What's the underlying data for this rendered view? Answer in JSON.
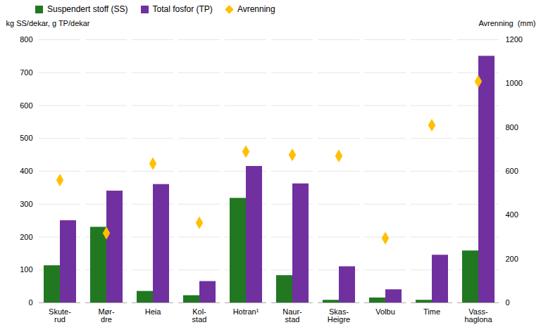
{
  "chart_data": {
    "type": "bar",
    "categories": [
      "Skute-\nrud",
      "Mør-\ndre",
      "Heia",
      "Kol-\nstad",
      "Hotran¹",
      "Naur-\nstad",
      "Skas-\nHeigre",
      "Volbu",
      "Time",
      "Vass-\nhaglona"
    ],
    "series": [
      {
        "name": "Suspendert stoff (SS)",
        "color": "#217821",
        "values": [
          113,
          230,
          35,
          22,
          318,
          83,
          8,
          15,
          8,
          158
        ]
      },
      {
        "name": "Total fosfor (TP)",
        "color": "#7030a0",
        "values": [
          250,
          340,
          360,
          65,
          415,
          362,
          110,
          40,
          145,
          750
        ]
      },
      {
        "name": "Avrenning",
        "color": "#ffc000",
        "type": "scatter",
        "marker": "diamond",
        "axis": "y2",
        "values": [
          560,
          318,
          635,
          365,
          690,
          675,
          670,
          295,
          810,
          1010
        ]
      }
    ],
    "ylabel": "kg SS/dekar, g TP/dekar",
    "y2label": "Avrenning  (mm)",
    "ylim": [
      0,
      800
    ],
    "yticks": [
      0,
      100,
      200,
      300,
      400,
      500,
      600,
      700,
      800
    ],
    "y2lim": [
      0,
      1200
    ],
    "y2ticks": [
      0,
      200,
      400,
      600,
      800,
      1000,
      1200
    ],
    "grid": true,
    "legend": "upper left"
  }
}
